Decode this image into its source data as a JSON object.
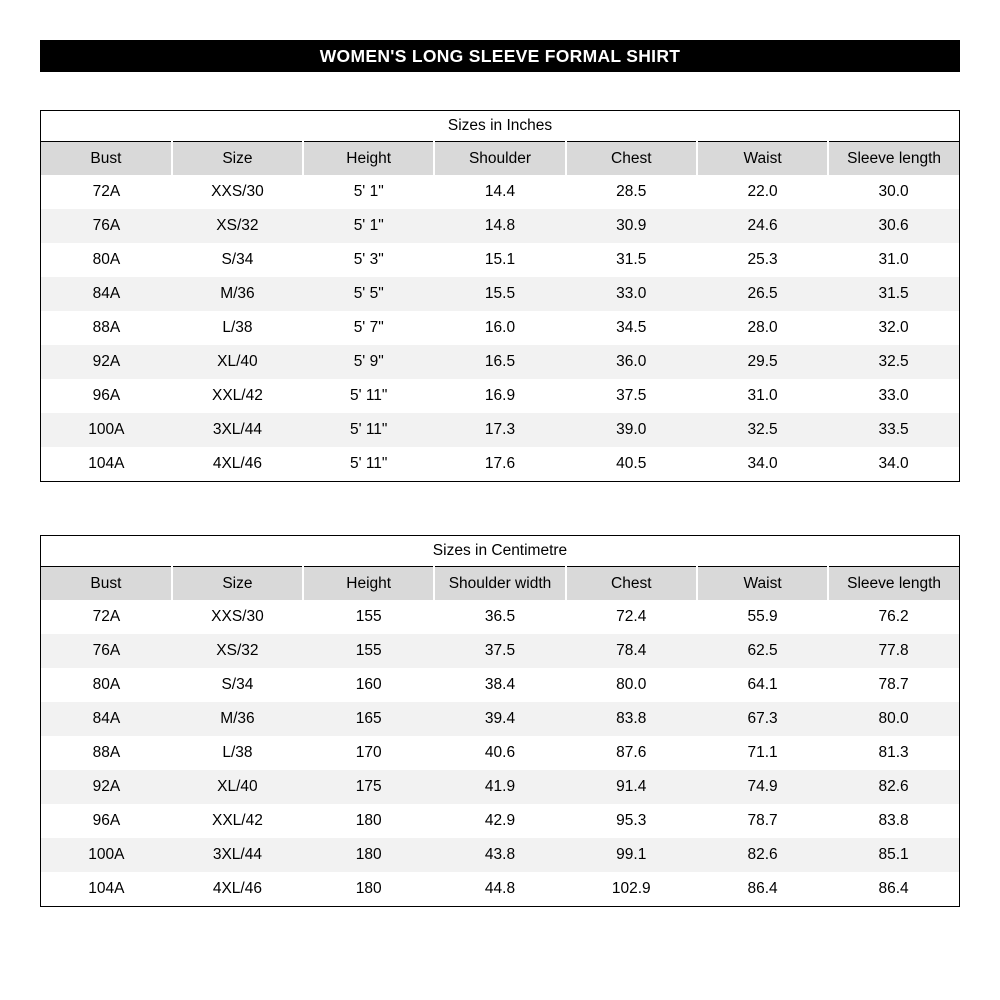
{
  "title": "WOMEN'S LONG SLEEVE FORMAL SHIRT",
  "chart_data": [
    {
      "type": "table",
      "title": "Sizes in Inches",
      "columns": [
        "Bust",
        "Size",
        "Height",
        "Shoulder",
        "Chest",
        "Waist",
        "Sleeve length"
      ],
      "rows": [
        [
          "72A",
          "XXS/30",
          "5' 1\"",
          "14.4",
          "28.5",
          "22.0",
          "30.0"
        ],
        [
          "76A",
          "XS/32",
          "5' 1\"",
          "14.8",
          "30.9",
          "24.6",
          "30.6"
        ],
        [
          "80A",
          "S/34",
          "5' 3\"",
          "15.1",
          "31.5",
          "25.3",
          "31.0"
        ],
        [
          "84A",
          "M/36",
          "5' 5\"",
          "15.5",
          "33.0",
          "26.5",
          "31.5"
        ],
        [
          "88A",
          "L/38",
          "5' 7\"",
          "16.0",
          "34.5",
          "28.0",
          "32.0"
        ],
        [
          "92A",
          "XL/40",
          "5' 9\"",
          "16.5",
          "36.0",
          "29.5",
          "32.5"
        ],
        [
          "96A",
          "XXL/42",
          "5' 11\"",
          "16.9",
          "37.5",
          "31.0",
          "33.0"
        ],
        [
          "100A",
          "3XL/44",
          "5' 11\"",
          "17.3",
          "39.0",
          "32.5",
          "33.5"
        ],
        [
          "104A",
          "4XL/46",
          "5' 11\"",
          "17.6",
          "40.5",
          "34.0",
          "34.0"
        ]
      ]
    },
    {
      "type": "table",
      "title": "Sizes in Centimetre",
      "columns": [
        "Bust",
        "Size",
        "Height",
        "Shoulder width",
        "Chest",
        "Waist",
        "Sleeve length"
      ],
      "rows": [
        [
          "72A",
          "XXS/30",
          "155",
          "36.5",
          "72.4",
          "55.9",
          "76.2"
        ],
        [
          "76A",
          "XS/32",
          "155",
          "37.5",
          "78.4",
          "62.5",
          "77.8"
        ],
        [
          "80A",
          "S/34",
          "160",
          "38.4",
          "80.0",
          "64.1",
          "78.7"
        ],
        [
          "84A",
          "M/36",
          "165",
          "39.4",
          "83.8",
          "67.3",
          "80.0"
        ],
        [
          "88A",
          "L/38",
          "170",
          "40.6",
          "87.6",
          "71.1",
          "81.3"
        ],
        [
          "92A",
          "XL/40",
          "175",
          "41.9",
          "91.4",
          "74.9",
          "82.6"
        ],
        [
          "96A",
          "XXL/42",
          "180",
          "42.9",
          "95.3",
          "78.7",
          "83.8"
        ],
        [
          "100A",
          "3XL/44",
          "180",
          "43.8",
          "99.1",
          "82.6",
          "85.1"
        ],
        [
          "104A",
          "4XL/46",
          "180",
          "44.8",
          "102.9",
          "86.4",
          "86.4"
        ]
      ]
    }
  ]
}
